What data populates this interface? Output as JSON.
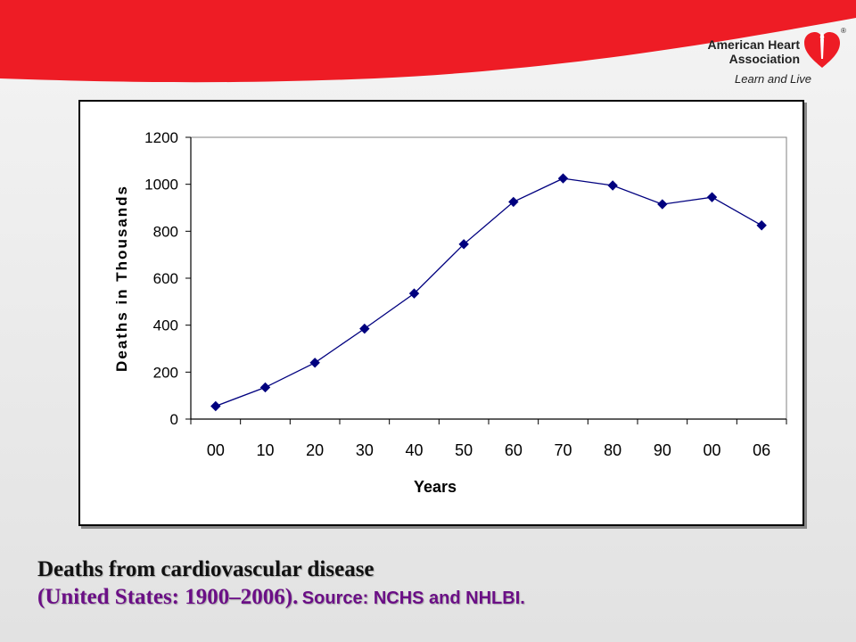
{
  "brand": {
    "name": "American Heart Association",
    "tagline": "Learn and Live",
    "registered_mark": "®",
    "accent_color": "#ee1c25"
  },
  "caption": {
    "line1": "Deaths from cardiovascular disease",
    "range": "(United States: 1900–2006).",
    "source": "Source: NCHS and NHLBI.",
    "accent_color": "#6b0f86"
  },
  "chart_data": {
    "type": "line",
    "title": "",
    "xlabel": "Years",
    "ylabel": "Deaths in Thousands",
    "categories": [
      "00",
      "10",
      "20",
      "30",
      "40",
      "50",
      "60",
      "70",
      "80",
      "90",
      "00",
      "06"
    ],
    "values": [
      55,
      135,
      240,
      385,
      535,
      745,
      925,
      1025,
      995,
      915,
      945,
      825
    ],
    "ylim": [
      0,
      1200
    ],
    "yticks": [
      0,
      200,
      400,
      600,
      800,
      1000,
      1200
    ],
    "grid": false,
    "legend": "none",
    "line_color": "#00007f",
    "marker": "diamond"
  }
}
